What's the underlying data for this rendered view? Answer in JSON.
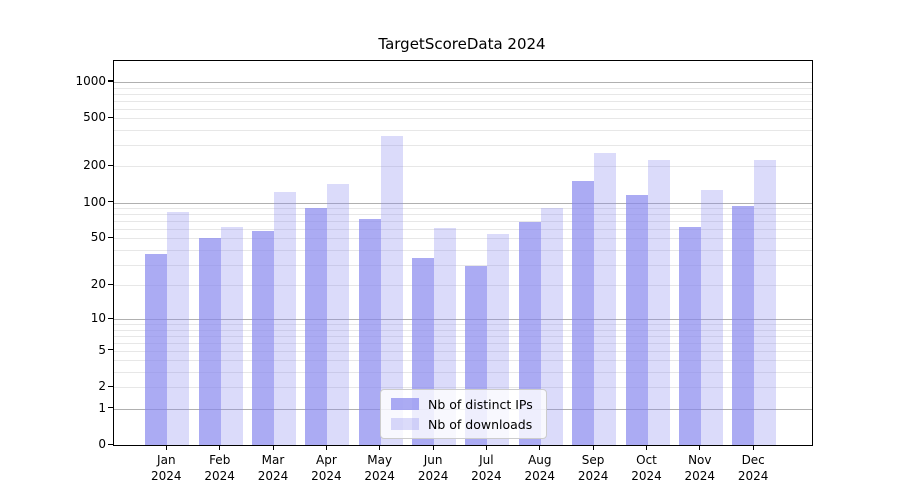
{
  "title": "TargetScoreData 2024",
  "legend": {
    "items": [
      {
        "label": "Nb of distinct IPs",
        "series": "distinct-ips"
      },
      {
        "label": "Nb of downloads",
        "series": "downloads"
      }
    ],
    "position": "lower center"
  },
  "colors": {
    "bar_base": "#8888ee",
    "bar_distinct_ips": "rgba(136,136,238,0.7)",
    "bar_distinct_ips_hex_on_white": "#ababf3",
    "bar_downloads": "rgba(136,136,238,0.3)",
    "bar_downloads_hex_on_white": "#dbdbfa",
    "grid_major": "#b0b0b0",
    "grid_minor": "#e7e7e7",
    "spine": "#000000",
    "background": "#ffffff"
  },
  "chart_data": {
    "type": "bar",
    "title": "TargetScoreData 2024",
    "categories": [
      "Jan",
      "Feb",
      "Mar",
      "Apr",
      "May",
      "Jun",
      "Jul",
      "Aug",
      "Sep",
      "Oct",
      "Nov",
      "Dec"
    ],
    "year_suffix": "2024",
    "series": [
      {
        "name": "Nb of distinct IPs",
        "values": [
          37,
          50,
          58,
          90,
          73,
          34,
          29,
          69,
          150,
          115,
          63,
          93
        ]
      },
      {
        "name": "Nb of downloads",
        "values": [
          84,
          62,
          123,
          143,
          360,
          61,
          55,
          90,
          260,
          225,
          126,
          225
        ]
      }
    ],
    "xlabel": "",
    "ylabel": "",
    "y_axis": {
      "scale": "log1p",
      "tick_values": [
        0,
        1,
        2,
        5,
        10,
        20,
        50,
        100,
        200,
        500,
        1000
      ],
      "tick_labels": [
        "0",
        "1",
        "2",
        "5",
        "10",
        "20",
        "50",
        "100",
        "200",
        "500",
        "1000"
      ],
      "ylim": [
        0,
        1470
      ]
    },
    "grid": true,
    "legend_position": "lower center"
  }
}
